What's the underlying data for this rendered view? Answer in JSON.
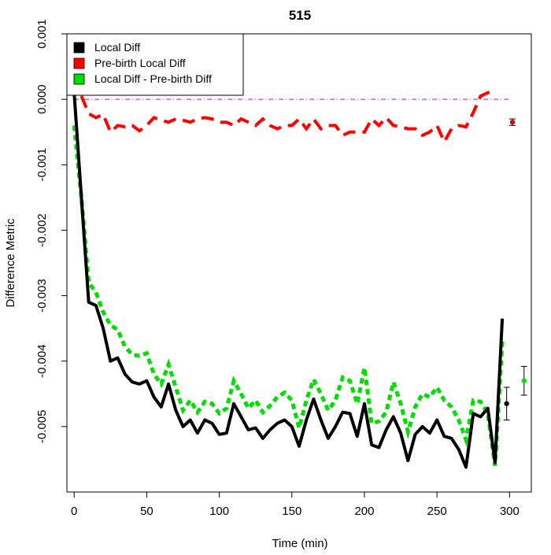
{
  "chart_data": {
    "type": "line",
    "title": "515",
    "xlabel": "Time (min)",
    "ylabel": "Difference Metric",
    "xlim": [
      -5,
      315
    ],
    "ylim": [
      -0.006,
      0.001
    ],
    "x_ticks": [
      0,
      50,
      100,
      150,
      200,
      250,
      300
    ],
    "x_tick_labels": [
      "0",
      "50",
      "100",
      "150",
      "200",
      "250",
      "300"
    ],
    "y_ticks": [
      0.001,
      0.0,
      -0.001,
      -0.002,
      -0.003,
      -0.004,
      -0.005
    ],
    "y_tick_labels": [
      "0.001",
      "0.000",
      "-0.001",
      "-0.002",
      "-0.003",
      "-0.004",
      "-0.005"
    ],
    "grid": false,
    "legend_position": "top-left",
    "reference_line": {
      "y": 0.0,
      "color": "#cc44cc",
      "style": "dash-dot"
    },
    "series": [
      {
        "name": "Local Diff",
        "color": "#000000",
        "style": "solid",
        "points": [
          [
            0,
            0.0001
          ],
          [
            5,
            -0.0015
          ],
          [
            10,
            -0.0031
          ],
          [
            15,
            -0.00315
          ],
          [
            20,
            -0.0035
          ],
          [
            25,
            -0.004
          ],
          [
            30,
            -0.00395
          ],
          [
            35,
            -0.0042
          ],
          [
            40,
            -0.00432
          ],
          [
            45,
            -0.00435
          ],
          [
            50,
            -0.0043
          ],
          [
            55,
            -0.00455
          ],
          [
            60,
            -0.0047
          ],
          [
            65,
            -0.00435
          ],
          [
            70,
            -0.00475
          ],
          [
            75,
            -0.005
          ],
          [
            80,
            -0.0049
          ],
          [
            85,
            -0.0051
          ],
          [
            90,
            -0.0049
          ],
          [
            95,
            -0.00495
          ],
          [
            100,
            -0.00512
          ],
          [
            105,
            -0.0051
          ],
          [
            110,
            -0.00465
          ],
          [
            115,
            -0.00485
          ],
          [
            120,
            -0.00505
          ],
          [
            125,
            -0.00502
          ],
          [
            130,
            -0.00518
          ],
          [
            135,
            -0.00505
          ],
          [
            140,
            -0.00495
          ],
          [
            145,
            -0.0049
          ],
          [
            150,
            -0.005
          ],
          [
            155,
            -0.0053
          ],
          [
            160,
            -0.0049
          ],
          [
            165,
            -0.00458
          ],
          [
            170,
            -0.0049
          ],
          [
            175,
            -0.00518
          ],
          [
            180,
            -0.005
          ],
          [
            185,
            -0.00478
          ],
          [
            190,
            -0.0048
          ],
          [
            195,
            -0.00515
          ],
          [
            200,
            -0.00465
          ],
          [
            205,
            -0.00528
          ],
          [
            210,
            -0.00532
          ],
          [
            215,
            -0.00505
          ],
          [
            220,
            -0.00485
          ],
          [
            225,
            -0.0051
          ],
          [
            230,
            -0.00552
          ],
          [
            235,
            -0.00512
          ],
          [
            240,
            -0.005
          ],
          [
            245,
            -0.0051
          ],
          [
            250,
            -0.0049
          ],
          [
            255,
            -0.00515
          ],
          [
            260,
            -0.00518
          ],
          [
            265,
            -0.00535
          ],
          [
            270,
            -0.00562
          ],
          [
            275,
            -0.0048
          ],
          [
            280,
            -0.00485
          ],
          [
            285,
            -0.00472
          ],
          [
            290,
            -0.00555
          ],
          [
            295,
            -0.00335
          ]
        ]
      },
      {
        "name": "Pre-birth Local Diff",
        "color": "#ff0000",
        "style": "dashed",
        "points": [
          [
            5,
            5e-05
          ],
          [
            10,
            -0.00022
          ],
          [
            15,
            -0.00028
          ],
          [
            20,
            -0.00023
          ],
          [
            25,
            -0.0005
          ],
          [
            30,
            -0.0004
          ],
          [
            35,
            -0.00042
          ],
          [
            40,
            -0.0004
          ],
          [
            45,
            -0.00048
          ],
          [
            50,
            -0.0004
          ],
          [
            55,
            -0.00028
          ],
          [
            60,
            -0.00032
          ],
          [
            65,
            -0.00035
          ],
          [
            70,
            -0.0003
          ],
          [
            75,
            -0.00032
          ],
          [
            80,
            -0.00035
          ],
          [
            85,
            -0.0003
          ],
          [
            90,
            -0.00028
          ],
          [
            95,
            -0.0003
          ],
          [
            100,
            -0.00035
          ],
          [
            105,
            -0.00035
          ],
          [
            110,
            -0.0004
          ],
          [
            115,
            -0.0003
          ],
          [
            120,
            -0.00035
          ],
          [
            125,
            -0.0004
          ],
          [
            130,
            -0.0003
          ],
          [
            135,
            -0.0004
          ],
          [
            140,
            -0.00045
          ],
          [
            145,
            -0.0004
          ],
          [
            150,
            -0.0004
          ],
          [
            155,
            -0.0003
          ],
          [
            160,
            -0.00045
          ],
          [
            165,
            -0.0003
          ],
          [
            170,
            -0.00045
          ],
          [
            175,
            -0.0004
          ],
          [
            180,
            -0.0004
          ],
          [
            185,
            -0.00055
          ],
          [
            190,
            -0.0005
          ],
          [
            195,
            -0.0005
          ],
          [
            200,
            -0.0005
          ],
          [
            205,
            -0.0003
          ],
          [
            210,
            -0.0004
          ],
          [
            215,
            -0.00028
          ],
          [
            220,
            -0.0004
          ],
          [
            225,
            -0.00042
          ],
          [
            230,
            -0.00045
          ],
          [
            235,
            -0.00045
          ],
          [
            240,
            -0.00055
          ],
          [
            245,
            -0.0005
          ],
          [
            250,
            -0.0004
          ],
          [
            255,
            -0.00065
          ],
          [
            260,
            -0.00045
          ],
          [
            265,
            -0.0004
          ],
          [
            270,
            -0.00042
          ],
          [
            275,
            -0.0002
          ],
          [
            280,
            5e-05
          ],
          [
            285,
            0.0001
          ],
          [
            290,
            0.00015
          ]
        ]
      },
      {
        "name": "Local Diff - Pre-birth Diff",
        "color": "#00dd00",
        "style": "dotted",
        "points": [
          [
            0,
            -0.0004
          ],
          [
            5,
            -0.0015
          ],
          [
            10,
            -0.0028
          ],
          [
            15,
            -0.00295
          ],
          [
            20,
            -0.00325
          ],
          [
            25,
            -0.00345
          ],
          [
            30,
            -0.00352
          ],
          [
            35,
            -0.00378
          ],
          [
            40,
            -0.0039
          ],
          [
            45,
            -0.00392
          ],
          [
            50,
            -0.00388
          ],
          [
            55,
            -0.0042
          ],
          [
            60,
            -0.00435
          ],
          [
            65,
            -0.00405
          ],
          [
            70,
            -0.0044
          ],
          [
            75,
            -0.00475
          ],
          [
            80,
            -0.0046
          ],
          [
            85,
            -0.00478
          ],
          [
            90,
            -0.00462
          ],
          [
            95,
            -0.00465
          ],
          [
            100,
            -0.0048
          ],
          [
            105,
            -0.00472
          ],
          [
            110,
            -0.0043
          ],
          [
            115,
            -0.0045
          ],
          [
            120,
            -0.00472
          ],
          [
            125,
            -0.0046
          ],
          [
            130,
            -0.00478
          ],
          [
            135,
            -0.00468
          ],
          [
            140,
            -0.00455
          ],
          [
            145,
            -0.00448
          ],
          [
            150,
            -0.0046
          ],
          [
            155,
            -0.00502
          ],
          [
            160,
            -0.0046
          ],
          [
            165,
            -0.00428
          ],
          [
            170,
            -0.0045
          ],
          [
            175,
            -0.00475
          ],
          [
            180,
            -0.0046
          ],
          [
            185,
            -0.00425
          ],
          [
            190,
            -0.0043
          ],
          [
            195,
            -0.00465
          ],
          [
            200,
            -0.0041
          ],
          [
            205,
            -0.00495
          ],
          [
            210,
            -0.00492
          ],
          [
            215,
            -0.00478
          ],
          [
            220,
            -0.00432
          ],
          [
            225,
            -0.00465
          ],
          [
            230,
            -0.00508
          ],
          [
            235,
            -0.0047
          ],
          [
            240,
            -0.0045
          ],
          [
            245,
            -0.00455
          ],
          [
            250,
            -0.0044
          ],
          [
            255,
            -0.0046
          ],
          [
            260,
            -0.0047
          ],
          [
            265,
            -0.0049
          ],
          [
            270,
            -0.0052
          ],
          [
            275,
            -0.0046
          ],
          [
            280,
            -0.00462
          ],
          [
            285,
            -0.0048
          ],
          [
            290,
            -0.0056
          ],
          [
            295,
            -0.0037
          ]
        ]
      }
    ],
    "summary_points": [
      {
        "series": "Pre-birth Local Diff",
        "x": 302,
        "y": -0.00035,
        "err": 5e-05,
        "color": "#cc0000"
      },
      {
        "series": "Local Diff",
        "x": 298,
        "y": -0.00465,
        "err": 0.00025,
        "color": "#000000"
      },
      {
        "series": "Local Diff - Pre-birth Diff",
        "x": 310,
        "y": -0.0043,
        "err": 0.00022,
        "color": "#00dd00"
      }
    ]
  }
}
